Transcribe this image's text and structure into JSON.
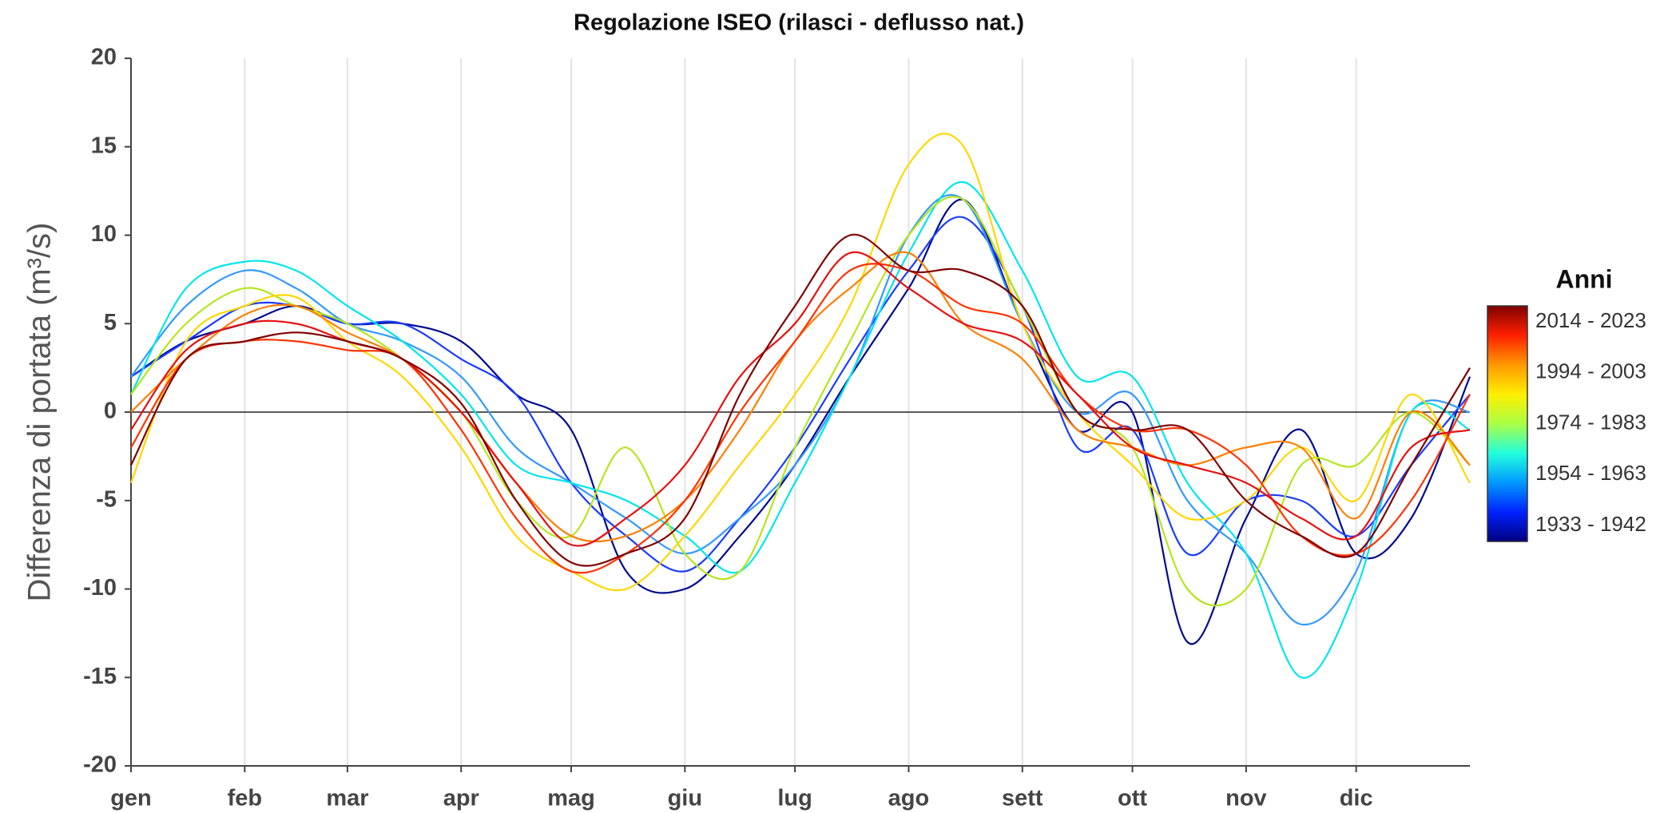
{
  "chart_data": {
    "type": "line",
    "title": "Regolazione ISEO (rilasci - deflusso nat.)",
    "ylabel": "Differenza di portata (m³/s)",
    "xlim": [
      0,
      365
    ],
    "xticks": [
      {
        "value": 0,
        "label": "gen"
      },
      {
        "value": 31,
        "label": "feb"
      },
      {
        "value": 59,
        "label": "mar"
      },
      {
        "value": 90,
        "label": "apr"
      },
      {
        "value": 120,
        "label": "mag"
      },
      {
        "value": 151,
        "label": "giu"
      },
      {
        "value": 181,
        "label": "lug"
      },
      {
        "value": 212,
        "label": "ago"
      },
      {
        "value": 243,
        "label": "sett"
      },
      {
        "value": 273,
        "label": "ott"
      },
      {
        "value": 304,
        "label": "nov"
      },
      {
        "value": 334,
        "label": "dic"
      }
    ],
    "ylim": [
      -20,
      20
    ],
    "yticks": [
      -20,
      -15,
      -10,
      -5,
      0,
      5,
      10,
      15,
      20
    ],
    "grid": true,
    "x": [
      0,
      15,
      31,
      45,
      59,
      74,
      90,
      105,
      120,
      135,
      151,
      166,
      181,
      196,
      212,
      227,
      243,
      258,
      273,
      288,
      304,
      319,
      334,
      349,
      365
    ],
    "series": [
      {
        "color": "#000a8f",
        "values": [
          2,
          4,
          5,
          6,
          5,
          5,
          4,
          1,
          -1,
          -9,
          -10,
          -7,
          -3,
          2,
          7,
          12,
          5,
          -1,
          0,
          -13,
          -6,
          -1,
          -8,
          -6,
          2
        ]
      },
      {
        "color": "#1a3cff",
        "values": [
          2,
          4,
          6,
          6,
          5,
          5,
          3,
          1,
          -4,
          -7,
          -9,
          -6,
          -2,
          3,
          8,
          11,
          6,
          -2,
          -1,
          -8,
          -5,
          -5,
          -7,
          -3,
          1
        ]
      },
      {
        "color": "#3399ff",
        "values": [
          2,
          6,
          8,
          7,
          5,
          4,
          2,
          -2,
          -4,
          -6,
          -8,
          -6,
          -3,
          2,
          10,
          12,
          5,
          0,
          1,
          -5,
          -8,
          -12,
          -9,
          0,
          0
        ]
      },
      {
        "color": "#00e5ee",
        "values": [
          1,
          7,
          8.5,
          8,
          6,
          4,
          1,
          -3,
          -4,
          -5,
          -7,
          -9,
          -4,
          2,
          9,
          13,
          8,
          2,
          2,
          -4,
          -8,
          -15,
          -10,
          0,
          -1
        ]
      },
      {
        "color": "#b5e61d",
        "values": [
          1,
          5,
          7,
          6,
          5,
          3,
          0,
          -5,
          -7,
          -2,
          -8,
          -9,
          -2,
          4,
          10,
          12,
          6,
          0,
          -2,
          -10,
          -10,
          -3,
          -3,
          0,
          -3
        ]
      },
      {
        "color": "#ffd700",
        "values": [
          -4,
          4,
          6,
          6.5,
          4,
          2,
          -2,
          -7,
          -9,
          -10,
          -7,
          -3,
          1,
          6,
          14,
          15,
          5,
          0,
          -3,
          -6,
          -5,
          -2,
          -5,
          1,
          -4
        ]
      },
      {
        "color": "#ff7f00",
        "values": [
          0,
          3,
          5.5,
          6,
          4.5,
          3,
          0,
          -4,
          -7,
          -7,
          -5,
          -1,
          4,
          7,
          9,
          5,
          3,
          -1,
          -2,
          -3,
          -2,
          -2,
          -6,
          0,
          -3
        ]
      },
      {
        "color": "#ff3300",
        "values": [
          -2,
          3,
          4,
          4,
          3.5,
          3,
          -1,
          -6,
          -9,
          -8,
          -5,
          0,
          4,
          8,
          8,
          6,
          5,
          1,
          -1,
          -1,
          -3,
          -7,
          -8,
          -5,
          1
        ]
      },
      {
        "color": "#e81010",
        "values": [
          -1,
          3.5,
          5,
          5,
          4,
          3,
          0,
          -4,
          -7.5,
          -6,
          -3,
          2,
          5,
          9,
          7,
          5,
          4,
          1,
          -2,
          -3,
          -4,
          -6,
          -7,
          -2,
          -1
        ]
      },
      {
        "color": "#800000",
        "values": [
          -3,
          3,
          4,
          4.5,
          4,
          3,
          0.5,
          -5,
          -8.5,
          -8,
          -6,
          1,
          6,
          10,
          8,
          8,
          6,
          0,
          -1,
          -1,
          -5,
          -7,
          -8,
          -3,
          2.5
        ]
      }
    ],
    "colorbar": {
      "title": "Anni",
      "labels": [
        "2014 - 2023",
        "1994 - 2003",
        "1974 - 1983",
        "1954 - 1963",
        "1933 - 1942"
      ],
      "colors": [
        "#800000",
        "#ff2000",
        "#ff9900",
        "#ffee00",
        "#aaff44",
        "#22ffdd",
        "#0099ff",
        "#0022ff",
        "#00007f"
      ]
    }
  }
}
